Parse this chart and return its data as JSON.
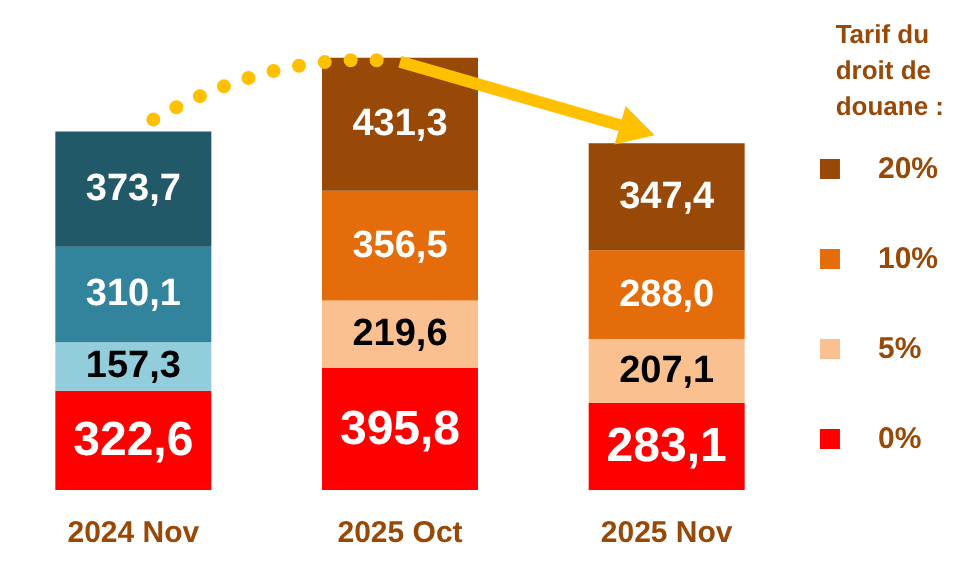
{
  "chart_data": {
    "type": "bar",
    "stacked": true,
    "legend": "right",
    "legend_title": "Tarif du droit de douane :",
    "categories": [
      "2024 Nov",
      "2025 Oct",
      "2025 Nov"
    ],
    "series": [
      {
        "name": "0%",
        "color": "#ff0000",
        "colors": [
          "#ff0000",
          "#ff0000",
          "#ff0000"
        ],
        "values": [
          322.6,
          395.8,
          283.1
        ],
        "value_labels": [
          "322,6",
          "395,8",
          "283,1"
        ]
      },
      {
        "name": "5%",
        "color": "#fac090",
        "colors": [
          "#92cddc",
          "#fac090",
          "#fac090"
        ],
        "values": [
          157.3,
          219.6,
          207.1
        ],
        "value_labels": [
          "157,3",
          "219,6",
          "207,1"
        ]
      },
      {
        "name": "10%",
        "color": "#e46c0a",
        "colors": [
          "#31849b",
          "#e46c0a",
          "#e46c0a"
        ],
        "values": [
          310.1,
          356.5,
          288.0
        ],
        "value_labels": [
          "310,1",
          "356,5",
          "288,0"
        ]
      },
      {
        "name": "20%",
        "color": "#984807",
        "colors": [
          "#215968",
          "#984807",
          "#984807"
        ],
        "values": [
          373.7,
          431.3,
          347.4
        ],
        "value_labels": [
          "373,7",
          "431,3",
          "347,4"
        ]
      }
    ]
  }
}
